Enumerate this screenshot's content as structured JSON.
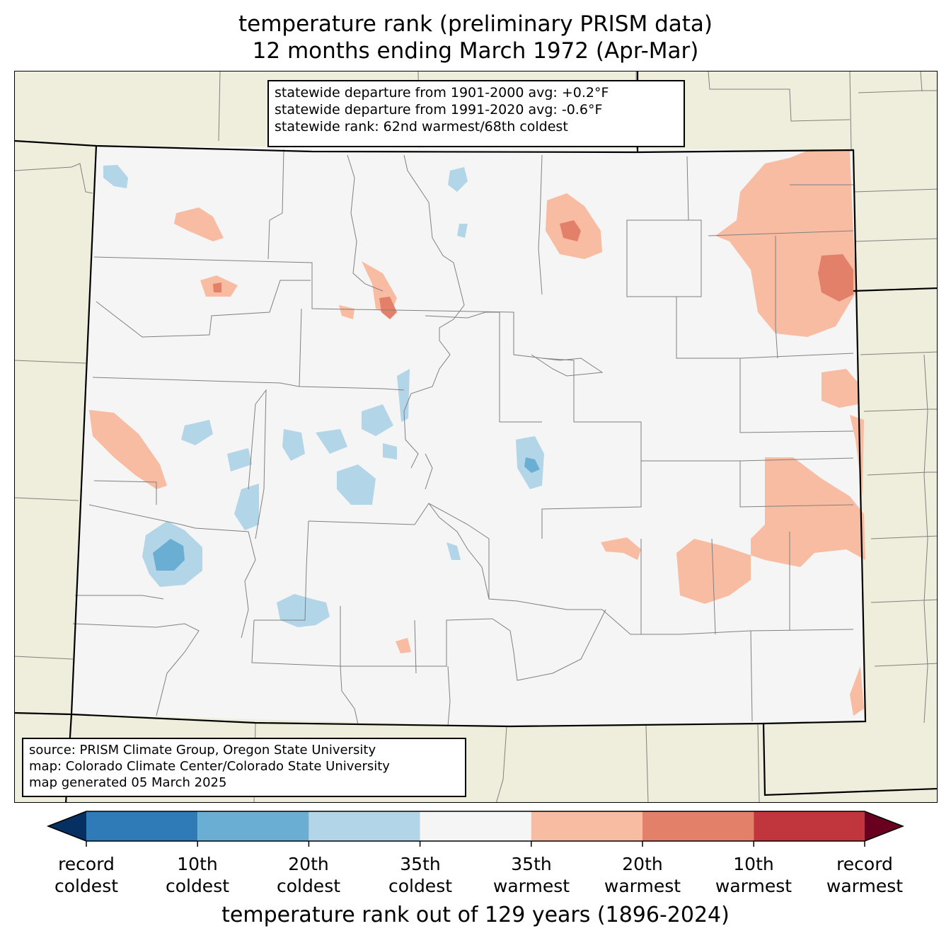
{
  "title": {
    "line1": "temperature rank (preliminary PRISM data)",
    "line2": "12 months ending March 1972 (Apr-Mar)"
  },
  "stats": [
    "statewide departure from 1901-2000 avg: +0.2°F",
    "statewide departure from 1991-2020 avg: -0.6°F",
    "statewide rank: 62nd warmest/68th coldest"
  ],
  "source": [
    "source: PRISM Climate Group, Oregon State University",
    "map: Colorado Climate Center/Colorado State University",
    "map generated 05 March 2025"
  ],
  "colorbar": {
    "title": "temperature rank out of 129 years (1896-2024)",
    "colors": [
      "#053061",
      "#2f7bb8",
      "#6aaed3",
      "#b3d5e8",
      "#f5f5f5",
      "#f8bca2",
      "#e2806a",
      "#c1363c",
      "#6a0020"
    ],
    "ticks": [
      {
        "line1": "record",
        "line2": "coldest"
      },
      {
        "line1": "10th",
        "line2": "coldest"
      },
      {
        "line1": "20th",
        "line2": "coldest"
      },
      {
        "line1": "35th",
        "line2": "coldest"
      },
      {
        "line1": "35th",
        "line2": "warmest"
      },
      {
        "line1": "20th",
        "line2": "warmest"
      },
      {
        "line1": "10th",
        "line2": "warmest"
      },
      {
        "line1": "record",
        "line2": "warmest"
      }
    ]
  },
  "map_colors": {
    "background": "#efeddb",
    "state_fill": "#f5f5f5",
    "warm_light": "#f8bca2",
    "warm_mid": "#e2806a",
    "warm_dark": "#d0503f",
    "cool_light": "#b3d5e8",
    "cool_mid": "#6aaed3",
    "county_line": "#808080",
    "state_line": "#000000"
  }
}
